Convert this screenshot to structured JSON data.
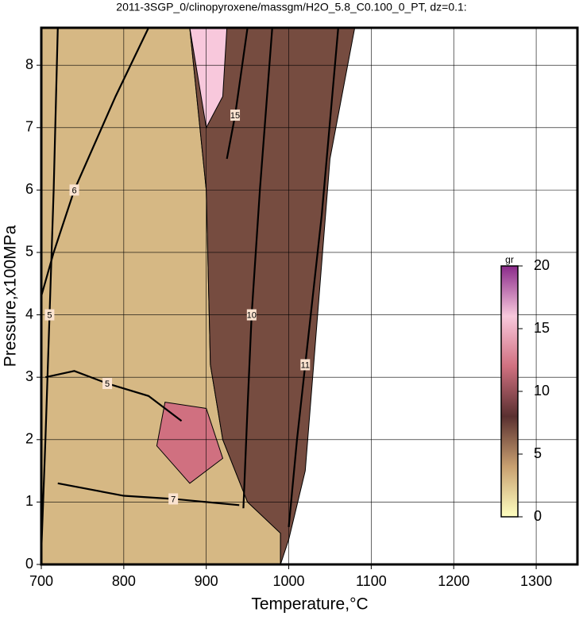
{
  "chart_data": {
    "type": "contour",
    "title": "2011-3SGP_0/clinopyroxene/massgm/H2O_5.8_C0.100_0_PT, dz=0.1:",
    "xlabel": "Temperature,°C",
    "ylabel": "Pressure,x100MPa",
    "xlim": [
      700,
      1350
    ],
    "ylim": [
      0,
      8.6
    ],
    "xticks": [
      700,
      800,
      900,
      1000,
      1100,
      1200,
      1300
    ],
    "yticks": [
      0,
      1,
      2,
      3,
      4,
      5,
      6,
      7,
      8
    ],
    "grid": true,
    "fields": [
      {
        "value": 3,
        "x": [
          700,
          990,
          990,
          950,
          920,
          905,
          900,
          880,
          700
        ],
        "y": [
          0,
          0,
          0.5,
          1,
          2,
          3.2,
          6,
          8.6,
          8.6
        ]
      },
      {
        "value": 7,
        "x": [
          880,
          900,
          905,
          920,
          950,
          990,
          990,
          1000,
          1020,
          1050,
          1080
        ],
        "y": [
          8.6,
          6,
          3.2,
          2,
          1,
          0.5,
          0,
          0.4,
          1.5,
          6.5,
          8.6
        ]
      },
      {
        "value": 16,
        "x": [
          880,
          925,
          920,
          900,
          890
        ],
        "y": [
          8.6,
          8.6,
          7.5,
          7,
          7.8
        ]
      },
      {
        "value": 12,
        "x": [
          850,
          900,
          920,
          880,
          840
        ],
        "y": [
          2.6,
          2.5,
          1.7,
          1.3,
          1.9
        ]
      }
    ],
    "contours": [
      {
        "level": 5,
        "x": [
          700,
          705,
          710,
          715,
          720
        ],
        "y": [
          0.2,
          2,
          4,
          6,
          8.6
        ]
      },
      {
        "level": 6,
        "x": [
          830,
          790,
          740,
          715,
          700
        ],
        "y": [
          8.6,
          7.5,
          6,
          5,
          4.3
        ]
      },
      {
        "level": 5,
        "x": [
          705,
          740,
          780,
          830,
          870
        ],
        "y": [
          3,
          3.1,
          2.9,
          2.7,
          2.3
        ]
      },
      {
        "level": 7,
        "x": [
          720,
          800,
          860,
          900,
          940
        ],
        "y": [
          1.3,
          1.1,
          1.05,
          1,
          0.95
        ]
      },
      {
        "level": 10,
        "x": [
          945,
          950,
          955,
          965,
          980
        ],
        "y": [
          0.9,
          2.5,
          4,
          6,
          8.6
        ]
      },
      {
        "level": 11,
        "x": [
          1000,
          1010,
          1020,
          1040,
          1060
        ],
        "y": [
          0.6,
          2,
          3.2,
          5.6,
          8.6
        ]
      },
      {
        "level": 15,
        "x": [
          925,
          935,
          950
        ],
        "y": [
          6.5,
          7.2,
          8.6
        ]
      }
    ],
    "colorbar": {
      "label": "gr",
      "lim": [
        0,
        20
      ],
      "ticks": [
        0,
        5,
        10,
        15,
        20
      ],
      "stops": [
        {
          "value": 0,
          "color": "#ffffc0"
        },
        {
          "value": 4,
          "color": "#c8a070"
        },
        {
          "value": 8,
          "color": "#5a3030"
        },
        {
          "value": 12,
          "color": "#d07080"
        },
        {
          "value": 16,
          "color": "#f8c8dc"
        },
        {
          "value": 20,
          "color": "#8a2a8a"
        }
      ]
    }
  }
}
